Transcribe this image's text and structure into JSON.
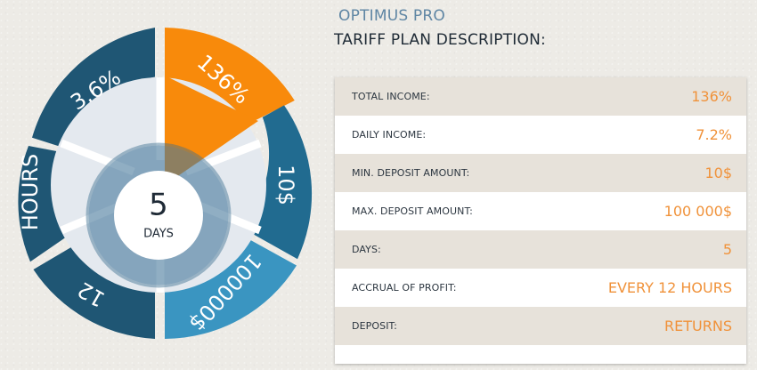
{
  "plan": {
    "title": "OPTIMUS PRO",
    "subtitle": "TARIFF PLAN DESCRIPTION:"
  },
  "wheel": {
    "segments": {
      "total_income": "136%",
      "daily_percent": "3.6%",
      "min_deposit": "10$",
      "max_deposit": "100000$",
      "accrual_value": "12",
      "accrual_unit": "HOURS"
    },
    "center": {
      "number": "5",
      "unit": "DAYS"
    },
    "colors": {
      "dark": "#1f5674",
      "medium": "#216b90",
      "light": "#3a95c1",
      "accent": "#f88a0b",
      "inner_ring": "#7fa7bf",
      "disc": "#e4e9ef"
    }
  },
  "table": {
    "rows": [
      {
        "label": "TOTAL INCOME:",
        "value": "136%"
      },
      {
        "label": "DAILY INCOME:",
        "value": "7.2%"
      },
      {
        "label": "MIN. DEPOSIT AMOUNT:",
        "value": "10$"
      },
      {
        "label": "MAX. DEPOSIT AMOUNT:",
        "value": "100 000$"
      },
      {
        "label": "DAYS:",
        "value": "5"
      },
      {
        "label": "ACCRUAL OF PROFIT:",
        "value": "EVERY 12 HOURS"
      },
      {
        "label": "DEPOSIT:",
        "value": "RETURNS"
      }
    ],
    "colors": {
      "label": "#2c3640",
      "value": "#f0923a",
      "stripe": "#e7e2da"
    }
  }
}
